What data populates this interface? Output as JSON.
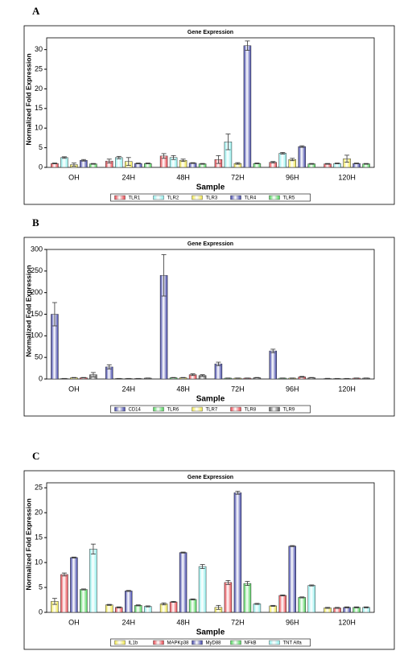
{
  "chart_data": [
    {
      "type": "bar",
      "panel": "A",
      "title": "Gene Expression",
      "xlabel": "Sample",
      "ylabel": "Normalized Fold Expression",
      "categories": [
        "OH",
        "24H",
        "48H",
        "72H",
        "96H",
        "120H"
      ],
      "ylim": [
        0,
        33
      ],
      "yticks": [
        0,
        5,
        10,
        15,
        20,
        25,
        30
      ],
      "series": [
        {
          "name": "TLR1",
          "color": "#e8424a",
          "values": [
            1,
            1.6,
            2.9,
            2,
            1.3,
            0.9
          ],
          "errors": [
            0.1,
            0.5,
            0.6,
            1,
            0.2,
            0.1
          ]
        },
        {
          "name": "TLR2",
          "color": "#8ff0ee",
          "values": [
            2.5,
            2.5,
            2.5,
            6.5,
            3.6,
            1
          ],
          "errors": [
            0.2,
            0.3,
            0.5,
            2,
            0.2,
            0.1
          ]
        },
        {
          "name": "TLR3",
          "color": "#f2e84a",
          "values": [
            0.7,
            1.5,
            1.8,
            1,
            2,
            2.2
          ],
          "errors": [
            0.4,
            1,
            0.3,
            0.2,
            0.3,
            0.9
          ]
        },
        {
          "name": "TLR4",
          "color": "#3a3fa6",
          "values": [
            1.8,
            1,
            1.1,
            31,
            5.3,
            1
          ],
          "errors": [
            0.2,
            0.1,
            0.1,
            1.2,
            0.2,
            0.1
          ]
        },
        {
          "name": "TLR5",
          "color": "#4cd458",
          "values": [
            0.9,
            1,
            0.9,
            1,
            0.9,
            0.9
          ],
          "errors": [
            0.1,
            0.1,
            0.1,
            0.1,
            0.1,
            0.1
          ]
        }
      ]
    },
    {
      "type": "bar",
      "panel": "B",
      "title": "Gene Expression",
      "xlabel": "Sample",
      "ylabel": "Normalized Fold Expression",
      "categories": [
        "OH",
        "24H",
        "48H",
        "72H",
        "96H",
        "120H"
      ],
      "ylim": [
        0,
        300
      ],
      "yticks": [
        0,
        50,
        100,
        150,
        200,
        250,
        300
      ],
      "series": [
        {
          "name": "CD14",
          "color": "#3a3fa6",
          "values": [
            150,
            28,
            240,
            35,
            65,
            1
          ],
          "errors": [
            27,
            5,
            48,
            4,
            4,
            0.5
          ]
        },
        {
          "name": "TLR6",
          "color": "#4cd458",
          "values": [
            1,
            1,
            3,
            2,
            2,
            1
          ],
          "errors": [
            0.3,
            0.3,
            0.5,
            0.3,
            0.3,
            0.3
          ]
        },
        {
          "name": "TLR7",
          "color": "#f2e84a",
          "values": [
            3,
            1,
            3,
            2,
            2,
            1
          ],
          "errors": [
            0.5,
            0.3,
            0.5,
            0.3,
            0.3,
            0.3
          ]
        },
        {
          "name": "TLR8",
          "color": "#e8424a",
          "values": [
            3,
            1,
            10,
            2,
            5,
            2
          ],
          "errors": [
            0.5,
            0.3,
            2,
            0.3,
            1,
            0.3
          ]
        },
        {
          "name": "TLR9",
          "color": "#555555",
          "values": [
            10,
            2,
            8,
            3,
            3,
            2
          ],
          "errors": [
            5,
            0.3,
            2,
            0.5,
            0.5,
            0.3
          ]
        }
      ]
    },
    {
      "type": "bar",
      "panel": "C",
      "title": "Gene Expression",
      "xlabel": "Sample",
      "ylabel": "Normalized Fold Expression",
      "categories": [
        "OH",
        "24H",
        "48H",
        "72H",
        "96H",
        "120H"
      ],
      "ylim": [
        0,
        26
      ],
      "yticks": [
        0,
        5,
        10,
        15,
        20,
        25
      ],
      "series": [
        {
          "name": "IL1b",
          "color": "#f2e84a",
          "values": [
            2.2,
            1.5,
            1.7,
            1,
            1.3,
            0.9
          ],
          "errors": [
            0.6,
            0.1,
            0.2,
            0.4,
            0.1,
            0.1
          ]
        },
        {
          "name": "MAPKp38",
          "color": "#e8424a",
          "values": [
            7.6,
            1,
            2.1,
            6,
            3.4,
            0.9
          ],
          "errors": [
            0.3,
            0.1,
            0.1,
            0.4,
            0.1,
            0.1
          ]
        },
        {
          "name": "MyD88",
          "color": "#3a3fa6",
          "values": [
            11,
            4.3,
            12,
            24,
            13.3,
            1
          ],
          "errors": [
            0.1,
            0.1,
            0.1,
            0.3,
            0.1,
            0.1
          ]
        },
        {
          "name": "NFkB",
          "color": "#4cd458",
          "values": [
            4.6,
            1.4,
            2.6,
            5.8,
            3,
            1
          ],
          "errors": [
            0.1,
            0.1,
            0.1,
            0.4,
            0.1,
            0.1
          ]
        },
        {
          "name": "TNT Alfa",
          "color": "#8ff0ee",
          "values": [
            12.7,
            1.2,
            9.2,
            1.7,
            5.4,
            1
          ],
          "errors": [
            1,
            0.1,
            0.4,
            0.1,
            0.1,
            0.1
          ]
        }
      ]
    }
  ]
}
